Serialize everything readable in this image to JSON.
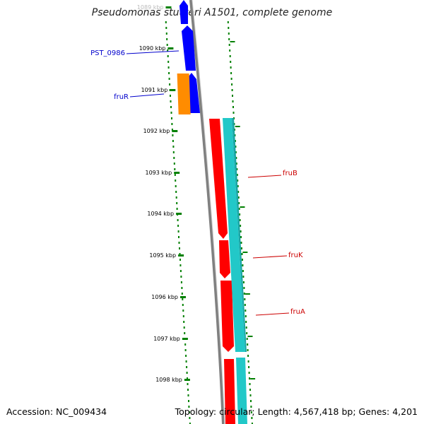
{
  "header": {
    "title": "Pseudomonas stutzeri A1501, complete genome"
  },
  "footer": {
    "accession": "Accession: NC_009434",
    "summary": "Topology: circular; Length: 4,567,418 bp; Genes: 4,201"
  },
  "ruler": {
    "ticks": [
      "1089 kbp",
      "1090 kbp",
      "1091 kbp",
      "1092 kbp",
      "1093 kbp",
      "1094 kbp",
      "1095 kbp",
      "1096 kbp",
      "1097 kbp",
      "1098 kbp"
    ]
  },
  "gene_labels": [
    {
      "name": "PST_0986",
      "color": "#0000cc"
    },
    {
      "name": "fruR",
      "color": "#0000cc"
    },
    {
      "name": "fruB",
      "color": "#cc0000"
    },
    {
      "name": "fruK",
      "color": "#cc0000"
    },
    {
      "name": "fruA",
      "color": "#cc0000"
    }
  ],
  "legend_colors": {
    "forward_cds": "#ff0000",
    "reverse_cds": "#0000ff",
    "regulator": "#ff8c00",
    "homology": "#22c8c8",
    "gc_content": "#008000",
    "backbone": "#808080"
  }
}
